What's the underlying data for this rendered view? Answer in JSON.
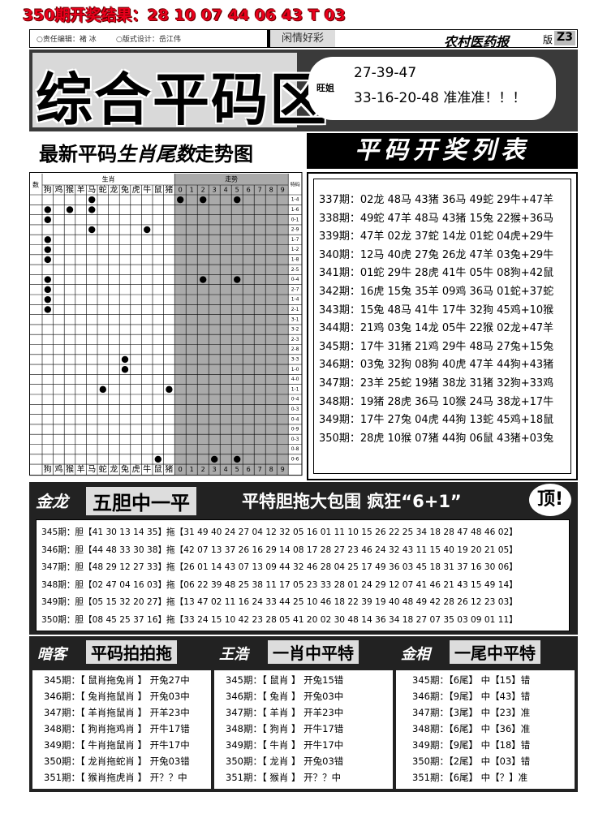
{
  "header": {
    "result": "350期开奖结果：28 10 07 44 06 43 T 03",
    "editor": "○责任编辑：褚 冰",
    "designer": "○版式设计：岳江伟",
    "column": "闲情好彩",
    "paper": "农村医药报",
    "page_label": "版",
    "page_no": "Z3"
  },
  "banner": {
    "title": "综合平码区",
    "author": "旺姐",
    "line1": "27-39-47",
    "line2": "33-16-20-48 准准准！！！"
  },
  "subtitle": {
    "part1": "最新平码",
    "part2": "生肖尾数",
    "part3": "走势图",
    "right": "平码开奖列表"
  },
  "grid": {
    "num_label": "数",
    "zodiac_label": "生肖",
    "trend_label": "走势",
    "special_label": "特码",
    "zodiacs": [
      "狗",
      "鸡",
      "猴",
      "羊",
      "马",
      "蛇",
      "龙",
      "兔",
      "虎",
      "牛",
      "鼠",
      "猪"
    ],
    "digits": [
      0,
      1,
      2,
      3,
      4,
      5,
      6,
      7,
      8,
      9
    ],
    "row_labels": [
      "1-4",
      "1-6",
      "0-1",
      "2-9",
      "1-7",
      "1-2",
      "1-8",
      "2-5",
      "0-4",
      "2-7",
      "1-4",
      "2-1",
      "3-1",
      "3-2",
      "2-3",
      "2-8",
      "3-3",
      "1-0",
      "4-0",
      "1-1",
      "0-4",
      "0-3",
      "0-4",
      "0-9",
      "0-3",
      "0-8",
      "0-6"
    ],
    "dots": [
      [
        0,
        4
      ],
      [
        0,
        12
      ],
      [
        0,
        14
      ],
      [
        0,
        17
      ],
      [
        1,
        0
      ],
      [
        1,
        2
      ],
      [
        1,
        4
      ],
      [
        2,
        0
      ],
      [
        3,
        4
      ],
      [
        3,
        9
      ],
      [
        4,
        0
      ],
      [
        5,
        0
      ],
      [
        6,
        0
      ],
      [
        8,
        0
      ],
      [
        8,
        14
      ],
      [
        8,
        17
      ],
      [
        9,
        0
      ],
      [
        10,
        0
      ],
      [
        11,
        0
      ],
      [
        16,
        7
      ],
      [
        17,
        7
      ],
      [
        19,
        5
      ],
      [
        19,
        11
      ],
      [
        26,
        10
      ],
      [
        26,
        15
      ],
      [
        26,
        17
      ]
    ]
  },
  "draw_list": [
    "337期：02龙 48马 43猪 36马 49蛇 29牛+47羊",
    "338期：49蛇 47羊 48马 43猪 15兔 22猴+36马",
    "339期：47羊 02龙 37蛇 14龙 01蛇 04虎+29牛",
    "340期：12马 40虎 27兔 26龙 47羊 03兔+29牛",
    "341期：01蛇 29牛 28虎 41牛 05牛 08狗+42鼠",
    "342期：16虎 15兔 35羊 09鸡 36马 01蛇+37蛇",
    "343期：15兔 48马 41牛 17牛 32狗 45鸡+10猴",
    "344期：21鸡 03兔 14龙 05牛 22猴 02龙+47羊",
    "345期：17牛 31猪 21鸡 29牛 48马 27兔+15兔",
    "346期：03兔 32狗 08狗 40虎 47羊 44狗+43猪",
    "347期：23羊 25蛇 19猪 38龙 31猪 32狗+33鸡",
    "348期：19猪 28虎 36马 10猴 24马 38龙+17牛",
    "349期：17牛 27兔 04虎 44狗 13蛇 45鸡+18鼠",
    "350期：28虎 10猴 07猪 44狗 06鼠 43猪+03兔"
  ],
  "section2": {
    "author": "金龙",
    "title": "五胆中一平",
    "slogan": "平特胆拖大包围 疯狂“6+1”",
    "badge": "顶!",
    "rows": [
      "345期：胆【41 30 13 14 35】拖【31 49 40 24 27 04 12 32 05 16 01 11 10 15 26 22 25 34 18 28 47 48 46 02】",
      "346期：胆【44 48 33 30 38】拖【42 07 13 37 26 16 29 14 08 17 28 27 23 46 24 32 43 11 15 40 19 20 21 05】",
      "347期：胆【48 29 12 27 33】拖【26 01 14 43 07 13 09 44 32 46 28 04 25 17 49 36 03 45 18 31 37 16 30 06】",
      "348期：胆【02 47 04 16 03】拖【06 22 39 48 25 38 11 17 05 23 33 28 01 24 29 12 07 41 46 21 43 15 49 14】",
      "349期：胆【05 15 32 20 27】拖【13 47 02 11 16 24 33 44 25 10 46 18 22 39 19 40 48 49 42 28 26 12 23 03】",
      "350期：胆【08 45 25 37 16】拖【33 24 15 10 42 23 28 05 41 20 02 30 48 14 36 34 18 27 07 35 03 09 01 11】"
    ]
  },
  "section3": [
    {
      "author": "暗客",
      "title": "平码拍拍拖",
      "rows": [
        "345期：【 鼠肖拖兔肖 】 开兔27中",
        "346期：【 兔肖拖鼠肖 】 开兔03中",
        "347期：【 羊肖拖鼠肖 】 开羊23中",
        "348期：【 狗肖拖鸡肖 】 开牛17错",
        "349期：【 牛肖拖鼠肖 】 开牛17中",
        "350期：【 龙肖拖蛇肖 】 开兔03错",
        "351期：【 猴肖拖虎肖 】 开？？中"
      ]
    },
    {
      "author": "王浩",
      "title": "一肖中平特",
      "rows": [
        "345期：【 鼠肖 】 开兔15错",
        "346期：【 兔肖 】 开兔03中",
        "347期：【 羊肖 】 开羊23中",
        "348期：【 狗肖 】 开牛17错",
        "349期：【 牛肖 】 开牛17中",
        "350期：【 龙肖 】 开兔03错",
        "351期：【 猴肖 】 开？？中"
      ]
    },
    {
      "author": "金相",
      "title": "一尾中平特",
      "rows": [
        "345期：【6尾】 中【15】错",
        "346期：【9尾】 中【43】错",
        "347期：【3尾】 中【23】准",
        "348期：【6尾】 中【36】准",
        "349期：【9尾】 中【18】错",
        "350期：【2尾】 中【03】错",
        "351期：【6尾】 中【？】准"
      ]
    }
  ]
}
